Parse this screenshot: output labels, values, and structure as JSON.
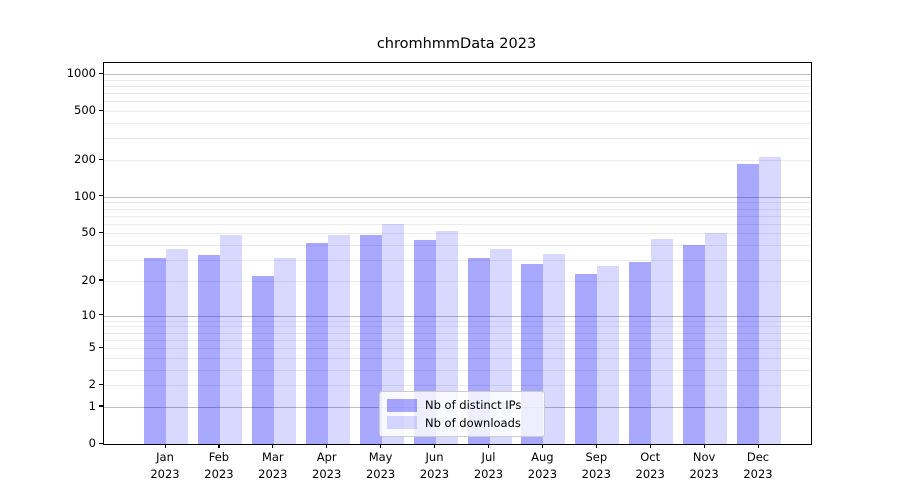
{
  "title": "chromhmmData 2023",
  "chart_data": {
    "type": "bar",
    "title": "chromhmmData 2023",
    "y_scale": "log1p",
    "ylim": [
      0,
      1228
    ],
    "y_ticks": [
      0,
      1,
      2,
      5,
      10,
      20,
      50,
      100,
      200,
      500,
      1000
    ],
    "grid": true,
    "grid_major_values": [
      1,
      10,
      100,
      1000
    ],
    "legend_position": "lower center",
    "categories": [
      {
        "month": "Jan",
        "year": "2023"
      },
      {
        "month": "Feb",
        "year": "2023"
      },
      {
        "month": "Mar",
        "year": "2023"
      },
      {
        "month": "Apr",
        "year": "2023"
      },
      {
        "month": "May",
        "year": "2023"
      },
      {
        "month": "Jun",
        "year": "2023"
      },
      {
        "month": "Jul",
        "year": "2023"
      },
      {
        "month": "Aug",
        "year": "2023"
      },
      {
        "month": "Sep",
        "year": "2023"
      },
      {
        "month": "Oct",
        "year": "2023"
      },
      {
        "month": "Nov",
        "year": "2023"
      },
      {
        "month": "Dec",
        "year": "2023"
      }
    ],
    "series": [
      {
        "name": "Nb of distinct IPs",
        "color_hex": "#a6a6f7",
        "fill": "rgba(0, 0, 255, 0.34)",
        "values": [
          31,
          33,
          22,
          42,
          49,
          44,
          31,
          28,
          23,
          29,
          40,
          185
        ]
      },
      {
        "name": "Nb of downloads",
        "color_hex": "#d9d9fa",
        "fill": "rgba(0, 0, 255, 0.15)",
        "values": [
          37,
          49,
          31,
          49,
          60,
          52,
          37,
          34,
          27,
          45,
          50,
          210
        ]
      }
    ]
  }
}
